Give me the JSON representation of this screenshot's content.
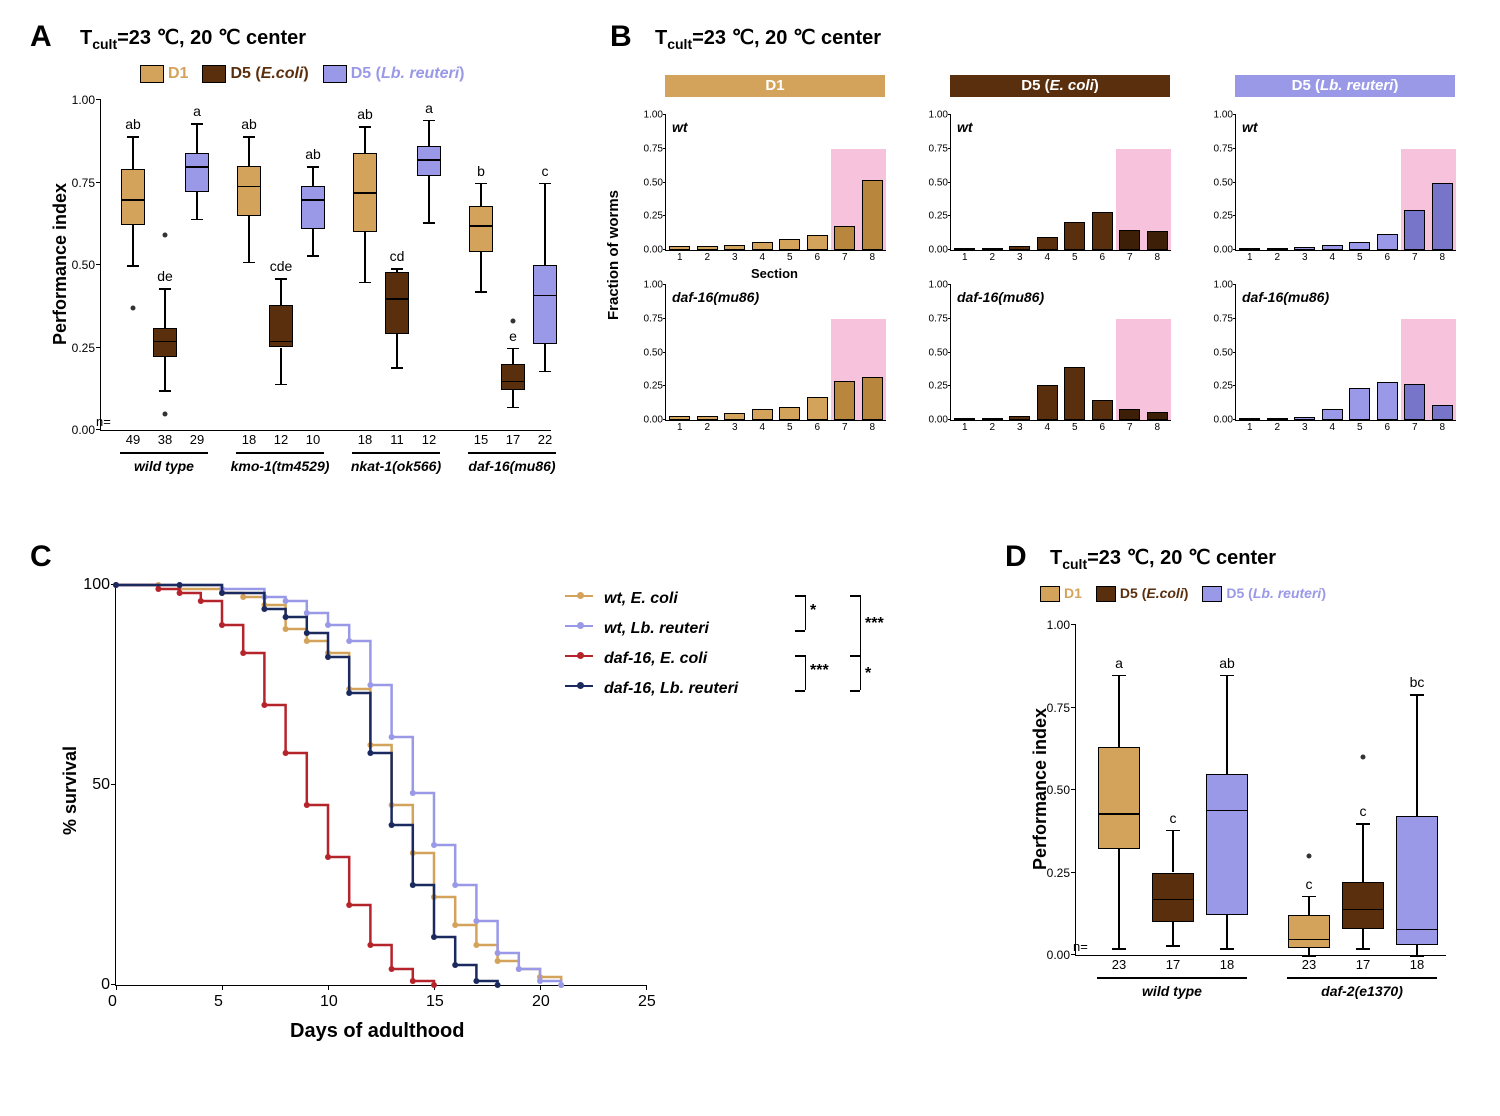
{
  "colors": {
    "d1": "#d4a35b",
    "d5e": "#5a2f0e",
    "d5l": "#9a99e8",
    "d1_dark": "#b8863d",
    "d5e_dark": "#3d1f08",
    "d5l_dark": "#7675c9",
    "pink": "#f7c3dc",
    "wt_ecoli": "#d4a35b",
    "wt_reuteri": "#9a99e8",
    "daf16_ecoli": "#b5242b",
    "daf16_reuteri": "#1a2a5e"
  },
  "panelA": {
    "label": "A",
    "title_prefix": "T",
    "title_sub": "cult",
    "title_rest": "=23 ℃, 20 ℃ center",
    "y_axis": "Performance index",
    "legend": [
      {
        "key": "d1",
        "text": "D1"
      },
      {
        "key": "d5e",
        "text": "D5 (",
        "italic": "E.coli",
        "after": ")"
      },
      {
        "key": "d5l",
        "text": "D5 (",
        "italic": "Lb. reuteri",
        "after": ")"
      }
    ],
    "y_ticks": [
      "0.00",
      "0.25",
      "0.50",
      "0.75",
      "1.00"
    ],
    "groups": [
      {
        "name": "wild type",
        "boxes": [
          {
            "q1": 0.62,
            "med": 0.7,
            "q3": 0.79,
            "lo": 0.5,
            "hi": 0.89,
            "outliers": [
              0.37
            ],
            "sig": "ab",
            "n": "49",
            "color": "d1"
          },
          {
            "q1": 0.22,
            "med": 0.27,
            "q3": 0.31,
            "lo": 0.12,
            "hi": 0.43,
            "outliers": [
              0.05,
              0.59
            ],
            "sig": "de",
            "n": "38",
            "color": "d5e"
          },
          {
            "q1": 0.72,
            "med": 0.8,
            "q3": 0.84,
            "lo": 0.64,
            "hi": 0.93,
            "outliers": [],
            "sig": "a",
            "n": "29",
            "color": "d5l"
          }
        ]
      },
      {
        "name": "kmo-1(tm4529)",
        "boxes": [
          {
            "q1": 0.65,
            "med": 0.74,
            "q3": 0.8,
            "lo": 0.51,
            "hi": 0.89,
            "outliers": [],
            "sig": "ab",
            "n": "18",
            "color": "d1"
          },
          {
            "q1": 0.25,
            "med": 0.27,
            "q3": 0.38,
            "lo": 0.14,
            "hi": 0.46,
            "outliers": [],
            "sig": "cde",
            "n": "12",
            "color": "d5e"
          },
          {
            "q1": 0.61,
            "med": 0.7,
            "q3": 0.74,
            "lo": 0.53,
            "hi": 0.8,
            "outliers": [],
            "sig": "ab",
            "n": "10",
            "color": "d5l"
          }
        ]
      },
      {
        "name": "nkat-1(ok566)",
        "boxes": [
          {
            "q1": 0.6,
            "med": 0.72,
            "q3": 0.84,
            "lo": 0.45,
            "hi": 0.92,
            "outliers": [],
            "sig": "ab",
            "n": "18",
            "color": "d1"
          },
          {
            "q1": 0.29,
            "med": 0.4,
            "q3": 0.48,
            "lo": 0.19,
            "hi": 0.49,
            "outliers": [],
            "sig": "cd",
            "n": "11",
            "color": "d5e"
          },
          {
            "q1": 0.77,
            "med": 0.82,
            "q3": 0.86,
            "lo": 0.63,
            "hi": 0.94,
            "outliers": [],
            "sig": "a",
            "n": "12",
            "color": "d5l"
          }
        ]
      },
      {
        "name": "daf-16(mu86)",
        "boxes": [
          {
            "q1": 0.54,
            "med": 0.62,
            "q3": 0.68,
            "lo": 0.42,
            "hi": 0.75,
            "outliers": [],
            "sig": "b",
            "n": "15",
            "color": "d1"
          },
          {
            "q1": 0.12,
            "med": 0.15,
            "q3": 0.2,
            "lo": 0.07,
            "hi": 0.25,
            "outliers": [
              0.33
            ],
            "sig": "e",
            "n": "17",
            "color": "d5e"
          },
          {
            "q1": 0.26,
            "med": 0.41,
            "q3": 0.5,
            "lo": 0.18,
            "hi": 0.75,
            "outliers": [],
            "sig": "c",
            "n": "22",
            "color": "d5l"
          }
        ]
      }
    ],
    "n_prefix": "n="
  },
  "panelB": {
    "label": "B",
    "title_prefix": "T",
    "title_sub": "cult",
    "title_rest": "=23 ℃, 20 ℃ center",
    "y_axis": "Fraction of worms",
    "x_axis": "Section",
    "headers": [
      "D1",
      "D5 (E. coli)",
      "D5 (Lb. reuteri)"
    ],
    "header_colors": [
      "d1",
      "d5e",
      "d5l"
    ],
    "row_labels": [
      "wt",
      "daf-16(mu86)"
    ],
    "y_ticks": [
      "0.00",
      "0.25",
      "0.50",
      "0.75",
      "1.00"
    ],
    "x_ticks": [
      "1",
      "2",
      "3",
      "4",
      "5",
      "6",
      "7",
      "8"
    ],
    "charts": [
      [
        {
          "color": "d1",
          "vals": [
            0.03,
            0.03,
            0.04,
            0.06,
            0.08,
            0.11,
            0.18,
            0.52
          ]
        },
        {
          "color": "d5e",
          "vals": [
            0.01,
            0.01,
            0.03,
            0.1,
            0.21,
            0.28,
            0.15,
            0.14
          ]
        },
        {
          "color": "d5l",
          "vals": [
            0.01,
            0.01,
            0.02,
            0.04,
            0.06,
            0.12,
            0.3,
            0.5
          ]
        }
      ],
      [
        {
          "color": "d1",
          "vals": [
            0.03,
            0.03,
            0.05,
            0.08,
            0.1,
            0.17,
            0.29,
            0.32
          ]
        },
        {
          "color": "d5e",
          "vals": [
            0.01,
            0.01,
            0.03,
            0.26,
            0.39,
            0.15,
            0.08,
            0.06
          ]
        },
        {
          "color": "d5l",
          "vals": [
            0.01,
            0.01,
            0.02,
            0.08,
            0.24,
            0.28,
            0.27,
            0.11
          ]
        }
      ]
    ]
  },
  "panelC": {
    "label": "C",
    "y_axis": "% survival",
    "x_axis": "Days of adulthood",
    "y_ticks": [
      "0",
      "50",
      "100"
    ],
    "x_ticks": [
      "0",
      "5",
      "10",
      "15",
      "20",
      "25"
    ],
    "legend": [
      {
        "text": "wt, E. coli",
        "color": "wt_ecoli"
      },
      {
        "text": "wt, Lb. reuteri",
        "color": "wt_reuteri"
      },
      {
        "text": "daf-16, E. coli",
        "color": "daf16_ecoli"
      },
      {
        "text": "daf-16, Lb. reuteri",
        "color": "daf16_reuteri"
      }
    ],
    "sig": [
      {
        "label": "*"
      },
      {
        "label": "***"
      },
      {
        "label": "***"
      },
      {
        "label": "*"
      }
    ],
    "curves": {
      "wt_ecoli": [
        [
          0,
          100
        ],
        [
          2,
          100
        ],
        [
          3,
          99
        ],
        [
          5,
          98
        ],
        [
          6,
          97
        ],
        [
          7,
          95
        ],
        [
          8,
          89
        ],
        [
          9,
          86
        ],
        [
          10,
          83
        ],
        [
          11,
          74
        ],
        [
          12,
          60
        ],
        [
          13,
          45
        ],
        [
          14,
          33
        ],
        [
          15,
          22
        ],
        [
          16,
          15
        ],
        [
          17,
          10
        ],
        [
          18,
          6
        ],
        [
          19,
          4
        ],
        [
          20,
          2
        ],
        [
          21,
          0
        ]
      ],
      "wt_reuteri": [
        [
          0,
          100
        ],
        [
          3,
          100
        ],
        [
          5,
          99
        ],
        [
          7,
          97
        ],
        [
          8,
          96
        ],
        [
          9,
          93
        ],
        [
          10,
          90
        ],
        [
          11,
          86
        ],
        [
          12,
          75
        ],
        [
          13,
          62
        ],
        [
          14,
          48
        ],
        [
          15,
          35
        ],
        [
          16,
          25
        ],
        [
          17,
          16
        ],
        [
          18,
          8
        ],
        [
          19,
          4
        ],
        [
          20,
          1
        ],
        [
          21,
          0
        ]
      ],
      "daf16_ecoli": [
        [
          0,
          100
        ],
        [
          2,
          99
        ],
        [
          3,
          98
        ],
        [
          4,
          96
        ],
        [
          5,
          90
        ],
        [
          6,
          83
        ],
        [
          7,
          70
        ],
        [
          8,
          58
        ],
        [
          9,
          45
        ],
        [
          10,
          32
        ],
        [
          11,
          20
        ],
        [
          12,
          10
        ],
        [
          13,
          4
        ],
        [
          14,
          1
        ],
        [
          15,
          0
        ]
      ],
      "daf16_reuteri": [
        [
          0,
          100
        ],
        [
          3,
          100
        ],
        [
          5,
          98
        ],
        [
          7,
          94
        ],
        [
          8,
          92
        ],
        [
          9,
          88
        ],
        [
          10,
          82
        ],
        [
          11,
          73
        ],
        [
          12,
          58
        ],
        [
          13,
          40
        ],
        [
          14,
          25
        ],
        [
          15,
          12
        ],
        [
          16,
          5
        ],
        [
          17,
          1
        ],
        [
          18,
          0
        ]
      ]
    }
  },
  "panelD": {
    "label": "D",
    "title_prefix": "T",
    "title_sub": "cult",
    "title_rest": "=23 ℃, 20 ℃ center",
    "y_axis": "Performance index",
    "legend": [
      {
        "key": "d1",
        "text": "D1"
      },
      {
        "key": "d5e",
        "text": "D5 (",
        "italic": "E.coli",
        "after": ")"
      },
      {
        "key": "d5l",
        "text": "D5 (",
        "italic": "Lb. reuteri",
        "after": ")"
      }
    ],
    "y_ticks": [
      "0.00",
      "0.25",
      "0.50",
      "0.75",
      "1.00"
    ],
    "groups": [
      {
        "name": "wild type",
        "boxes": [
          {
            "q1": 0.32,
            "med": 0.43,
            "q3": 0.63,
            "lo": 0.02,
            "hi": 0.85,
            "outliers": [],
            "sig": "a",
            "n": "23",
            "color": "d1"
          },
          {
            "q1": 0.1,
            "med": 0.17,
            "q3": 0.25,
            "lo": 0.03,
            "hi": 0.38,
            "outliers": [],
            "sig": "c",
            "n": "17",
            "color": "d5e"
          },
          {
            "q1": 0.12,
            "med": 0.44,
            "q3": 0.55,
            "lo": 0.02,
            "hi": 0.85,
            "outliers": [],
            "sig": "ab",
            "n": "18",
            "color": "d5l"
          }
        ]
      },
      {
        "name": "daf-2(e1370)",
        "boxes": [
          {
            "q1": 0.02,
            "med": 0.05,
            "q3": 0.12,
            "lo": 0.0,
            "hi": 0.18,
            "outliers": [
              0.3
            ],
            "sig": "c",
            "n": "23",
            "color": "d1"
          },
          {
            "q1": 0.08,
            "med": 0.14,
            "q3": 0.22,
            "lo": 0.02,
            "hi": 0.4,
            "outliers": [
              0.6
            ],
            "sig": "c",
            "n": "17",
            "color": "d5e"
          },
          {
            "q1": 0.03,
            "med": 0.08,
            "q3": 0.42,
            "lo": 0.0,
            "hi": 0.79,
            "outliers": [],
            "sig": "bc",
            "n": "18",
            "color": "d5l"
          }
        ]
      }
    ],
    "n_prefix": "n="
  }
}
